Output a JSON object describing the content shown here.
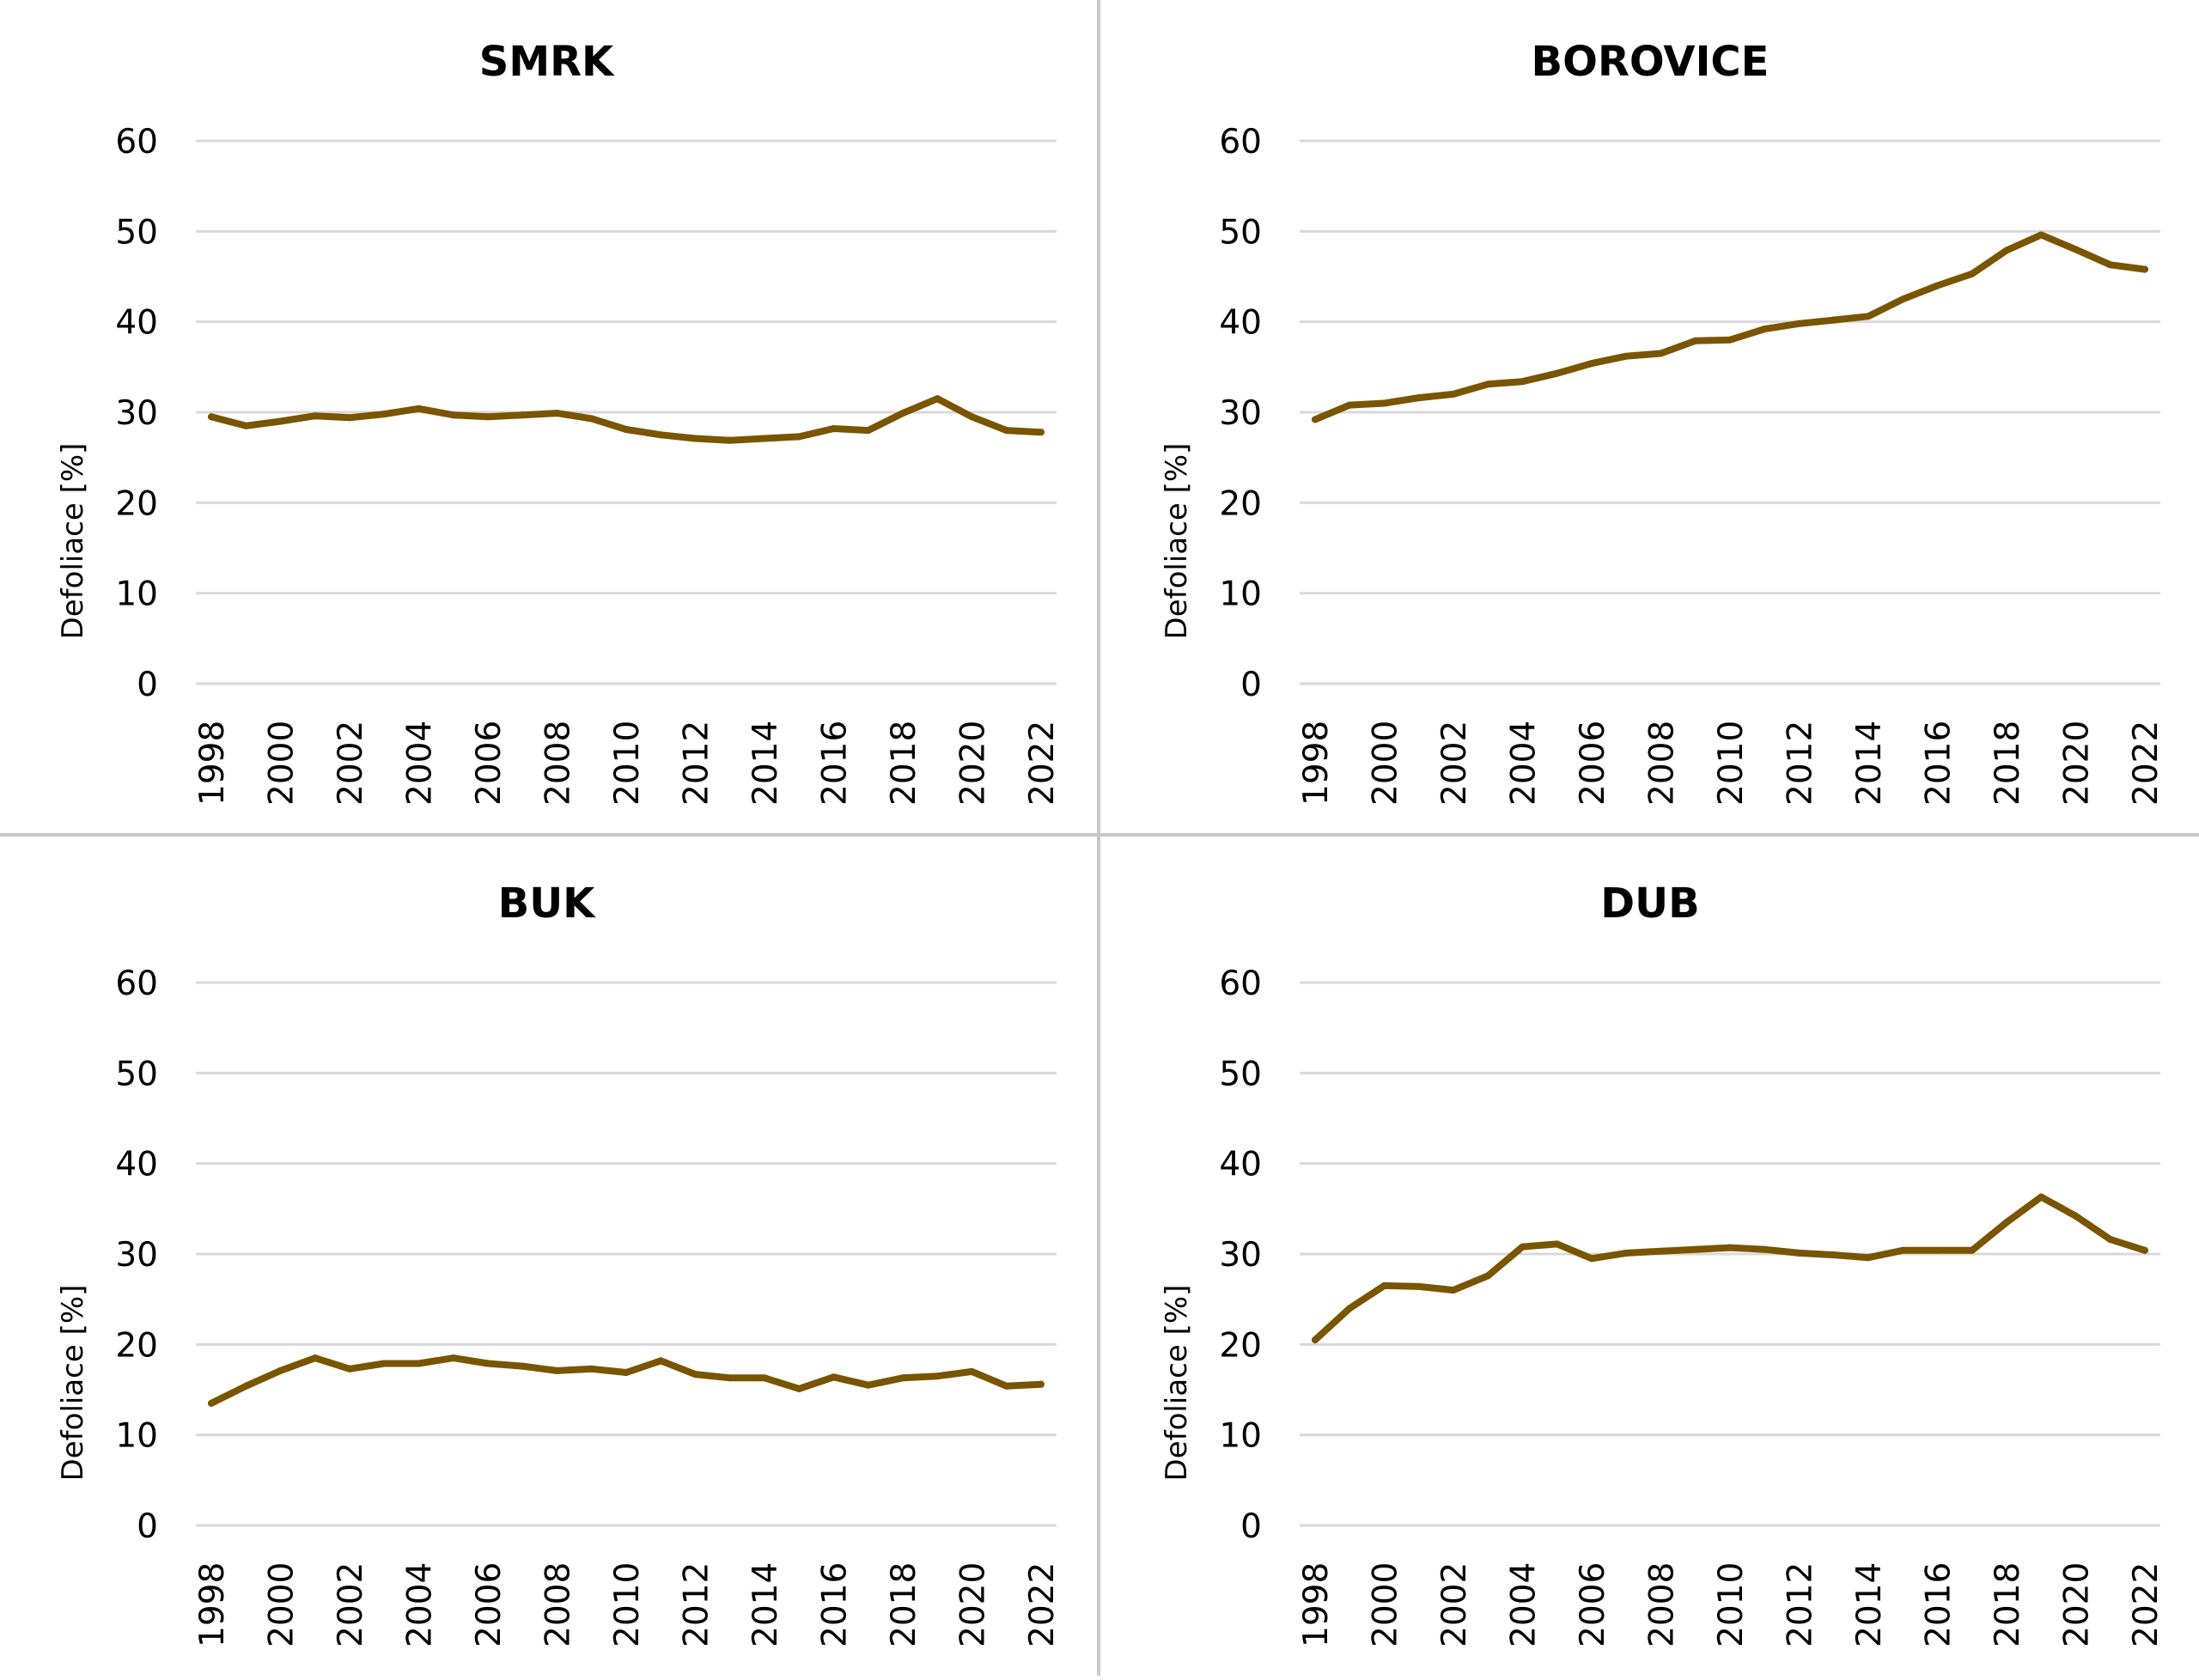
{
  "colors": {
    "line": "#7a5500",
    "grid": "#d9d9d9",
    "divider": "#c8c8c8",
    "background": "#ffffff"
  },
  "chart_data": [
    {
      "type": "line",
      "title": "SMRK",
      "ylabel": "Defoliace [%]",
      "xlabel": "",
      "ylim": [
        0,
        60
      ],
      "yticks": [
        "0",
        "10",
        "20",
        "30",
        "40",
        "50",
        "60"
      ],
      "x": [
        1998,
        1999,
        2000,
        2001,
        2002,
        2003,
        2004,
        2005,
        2006,
        2007,
        2008,
        2009,
        2010,
        2011,
        2012,
        2013,
        2014,
        2015,
        2016,
        2017,
        2018,
        2019,
        2020,
        2021,
        2022
      ],
      "xtick_labels": [
        "1998",
        "2000",
        "2002",
        "2004",
        "2006",
        "2008",
        "2010",
        "2012",
        "2014",
        "2016",
        "2018",
        "2020",
        "2022"
      ],
      "grid": true,
      "legend": "none",
      "series": [
        {
          "values": [
            29.5,
            28.5,
            29.0,
            29.6,
            29.4,
            29.8,
            30.4,
            29.7,
            29.5,
            29.7,
            29.9,
            29.3,
            28.1,
            27.5,
            27.1,
            26.9,
            27.1,
            27.3,
            28.2,
            28.0,
            29.9,
            31.5,
            29.5,
            28.0,
            27.8
          ]
        }
      ]
    },
    {
      "type": "line",
      "title": "BOROVICE",
      "ylabel": "Defoliace [%]",
      "xlabel": "",
      "ylim": [
        0,
        60
      ],
      "yticks": [
        "0",
        "10",
        "20",
        "30",
        "40",
        "50",
        "60"
      ],
      "x": [
        1998,
        1999,
        2000,
        2001,
        2002,
        2003,
        2004,
        2005,
        2006,
        2007,
        2008,
        2009,
        2010,
        2011,
        2012,
        2013,
        2014,
        2015,
        2016,
        2017,
        2018,
        2019,
        2020,
        2021,
        2022
      ],
      "xtick_labels": [
        "1998",
        "2000",
        "2002",
        "2004",
        "2006",
        "2008",
        "2010",
        "2012",
        "2014",
        "2016",
        "2018",
        "2020",
        "2022"
      ],
      "grid": true,
      "legend": "none",
      "series": [
        {
          "values": [
            29.2,
            30.8,
            31.0,
            31.6,
            32.0,
            33.1,
            33.4,
            34.3,
            35.4,
            36.2,
            36.5,
            37.9,
            38.0,
            39.2,
            39.8,
            40.2,
            40.6,
            42.5,
            44.0,
            45.3,
            47.9,
            49.6,
            48.0,
            46.3,
            45.8
          ]
        }
      ]
    },
    {
      "type": "line",
      "title": "BUK",
      "ylabel": "Defoliace [%]",
      "xlabel": "",
      "ylim": [
        0,
        60
      ],
      "yticks": [
        "0",
        "10",
        "20",
        "30",
        "40",
        "50",
        "60"
      ],
      "x": [
        1998,
        1999,
        2000,
        2001,
        2002,
        2003,
        2004,
        2005,
        2006,
        2007,
        2008,
        2009,
        2010,
        2011,
        2012,
        2013,
        2014,
        2015,
        2016,
        2017,
        2018,
        2019,
        2020,
        2021,
        2022
      ],
      "xtick_labels": [
        "1998",
        "2000",
        "2002",
        "2004",
        "2006",
        "2008",
        "2010",
        "2012",
        "2014",
        "2016",
        "2018",
        "2020",
        "2022"
      ],
      "grid": true,
      "legend": "none",
      "series": [
        {
          "values": [
            13.5,
            15.4,
            17.1,
            18.5,
            17.3,
            17.9,
            17.9,
            18.5,
            17.9,
            17.6,
            17.1,
            17.3,
            16.9,
            18.2,
            16.7,
            16.3,
            16.3,
            15.1,
            16.4,
            15.5,
            16.3,
            16.5,
            17.0,
            15.4,
            15.6
          ]
        }
      ]
    },
    {
      "type": "line",
      "title": "DUB",
      "ylabel": "Defoliace [%]",
      "xlabel": "",
      "ylim": [
        0,
        60
      ],
      "yticks": [
        "0",
        "10",
        "20",
        "30",
        "40",
        "50",
        "60"
      ],
      "x": [
        1998,
        1999,
        2000,
        2001,
        2002,
        2003,
        2004,
        2005,
        2006,
        2007,
        2008,
        2009,
        2010,
        2011,
        2012,
        2013,
        2014,
        2015,
        2016,
        2017,
        2018,
        2019,
        2020,
        2021,
        2022
      ],
      "xtick_labels": [
        "1998",
        "2000",
        "2002",
        "2004",
        "2006",
        "2008",
        "2010",
        "2012",
        "2014",
        "2016",
        "2018",
        "2020",
        "2022"
      ],
      "grid": true,
      "legend": "none",
      "series": [
        {
          "values": [
            20.5,
            24.0,
            26.5,
            26.4,
            26.0,
            27.6,
            30.8,
            31.1,
            29.5,
            30.1,
            30.3,
            30.5,
            30.7,
            30.5,
            30.1,
            29.9,
            29.6,
            30.4,
            30.4,
            30.4,
            33.5,
            36.3,
            34.2,
            31.6,
            30.4
          ]
        }
      ]
    }
  ]
}
